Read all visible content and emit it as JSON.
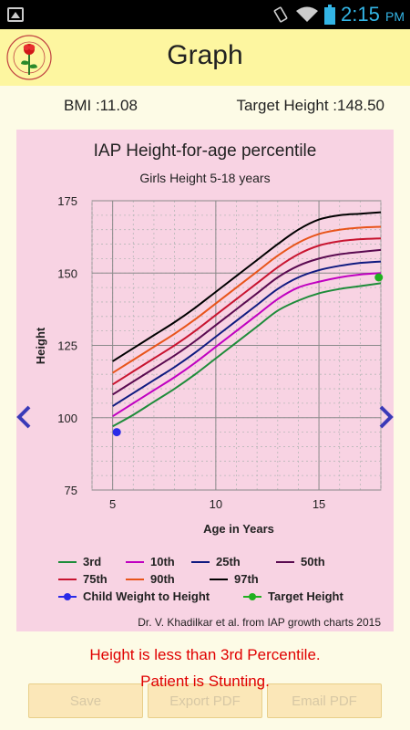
{
  "status_bar": {
    "time": "2:15",
    "ampm": "PM"
  },
  "header": {
    "title": "Graph"
  },
  "info": {
    "bmi": "BMI :11.08",
    "target_height": "Target Height :148.50"
  },
  "chart_data": {
    "type": "line",
    "title": "IAP Height-for-age percentile",
    "subtitle": "Girls Height 5-18 years",
    "xlabel": "Age in Years",
    "ylabel": "Height",
    "xlim": [
      4,
      18
    ],
    "ylim": [
      75,
      175
    ],
    "x_ticks": [
      "5",
      "10",
      "15"
    ],
    "y_ticks": [
      "75",
      "100",
      "125",
      "150",
      "175"
    ],
    "grid": true,
    "legend_position": "bottom",
    "series": [
      {
        "name": "3rd",
        "color": "#1e8c3a",
        "points": [
          [
            5,
            97
          ],
          [
            6,
            101
          ],
          [
            7,
            105.5
          ],
          [
            8,
            110
          ],
          [
            9,
            115
          ],
          [
            10,
            120.5
          ],
          [
            11,
            126
          ],
          [
            12,
            131.5
          ],
          [
            13,
            137
          ],
          [
            14,
            140.5
          ],
          [
            15,
            143
          ],
          [
            16,
            144.5
          ],
          [
            17,
            145.5
          ],
          [
            18,
            146.5
          ]
        ]
      },
      {
        "name": "10th",
        "color": "#c000c0",
        "points": [
          [
            5,
            100.5
          ],
          [
            6,
            105
          ],
          [
            7,
            109.5
          ],
          [
            8,
            114
          ],
          [
            9,
            119
          ],
          [
            10,
            124.5
          ],
          [
            11,
            130
          ],
          [
            12,
            135.5
          ],
          [
            13,
            141
          ],
          [
            14,
            145
          ],
          [
            15,
            147
          ],
          [
            16,
            148.5
          ],
          [
            17,
            149.5
          ],
          [
            18,
            150
          ]
        ]
      },
      {
        "name": "25th",
        "color": "#101a80",
        "points": [
          [
            5,
            104
          ],
          [
            6,
            108.5
          ],
          [
            7,
            113
          ],
          [
            8,
            117.5
          ],
          [
            9,
            122.5
          ],
          [
            10,
            128
          ],
          [
            11,
            133.5
          ],
          [
            12,
            139
          ],
          [
            13,
            144.5
          ],
          [
            14,
            148.5
          ],
          [
            15,
            151
          ],
          [
            16,
            152.5
          ],
          [
            17,
            153.5
          ],
          [
            18,
            154
          ]
        ]
      },
      {
        "name": "50th",
        "color": "#5a0a50",
        "points": [
          [
            5,
            108
          ],
          [
            6,
            112.5
          ],
          [
            7,
            117
          ],
          [
            8,
            121.5
          ],
          [
            9,
            126.5
          ],
          [
            10,
            132
          ],
          [
            11,
            137.5
          ],
          [
            12,
            143
          ],
          [
            13,
            148.5
          ],
          [
            14,
            152.5
          ],
          [
            15,
            155
          ],
          [
            16,
            156.5
          ],
          [
            17,
            157.3
          ],
          [
            18,
            158
          ]
        ]
      },
      {
        "name": "75th",
        "color": "#c81430",
        "points": [
          [
            5,
            111.5
          ],
          [
            6,
            116
          ],
          [
            7,
            120.5
          ],
          [
            8,
            125
          ],
          [
            9,
            130
          ],
          [
            10,
            135.5
          ],
          [
            11,
            141
          ],
          [
            12,
            146.5
          ],
          [
            13,
            152
          ],
          [
            14,
            156.5
          ],
          [
            15,
            159.5
          ],
          [
            16,
            161
          ],
          [
            17,
            161.7
          ],
          [
            18,
            162
          ]
        ]
      },
      {
        "name": "90th",
        "color": "#e8541a",
        "points": [
          [
            5,
            115.5
          ],
          [
            6,
            120
          ],
          [
            7,
            124.5
          ],
          [
            8,
            129
          ],
          [
            9,
            134
          ],
          [
            10,
            139.5
          ],
          [
            11,
            145
          ],
          [
            12,
            150.5
          ],
          [
            13,
            156
          ],
          [
            14,
            160.5
          ],
          [
            15,
            163.5
          ],
          [
            16,
            165
          ],
          [
            17,
            165.7
          ],
          [
            18,
            166
          ]
        ]
      },
      {
        "name": "97th",
        "color": "#000000",
        "points": [
          [
            5,
            119.5
          ],
          [
            6,
            124
          ],
          [
            7,
            128.5
          ],
          [
            8,
            133
          ],
          [
            9,
            138
          ],
          [
            10,
            143.5
          ],
          [
            11,
            149
          ],
          [
            12,
            154.5
          ],
          [
            13,
            160
          ],
          [
            14,
            165
          ],
          [
            15,
            168.5
          ],
          [
            16,
            170
          ],
          [
            17,
            170.5
          ],
          [
            18,
            171
          ]
        ]
      }
    ],
    "markers": [
      {
        "name": "Child Weight to Height",
        "color": "#2a2ae8",
        "x": 5.2,
        "y": 95
      },
      {
        "name": "Target Height",
        "color": "#20b020",
        "x": 17.9,
        "y": 148.5
      }
    ],
    "attribution": "Dr. V. Khadilkar et al. from IAP growth charts 2015"
  },
  "messages": {
    "line1": "Height is less than 3rd Percentile.",
    "line2": "Patient is Stunting."
  },
  "buttons": {
    "save": "Save",
    "export_pdf": "Export PDF",
    "email_pdf": "Email PDF"
  },
  "colors": {
    "header_bg": "#fdf6a0",
    "chart_bg": "#f8d3e3",
    "warning": "#e00000",
    "nav_arrow": "#3a3ab8"
  }
}
